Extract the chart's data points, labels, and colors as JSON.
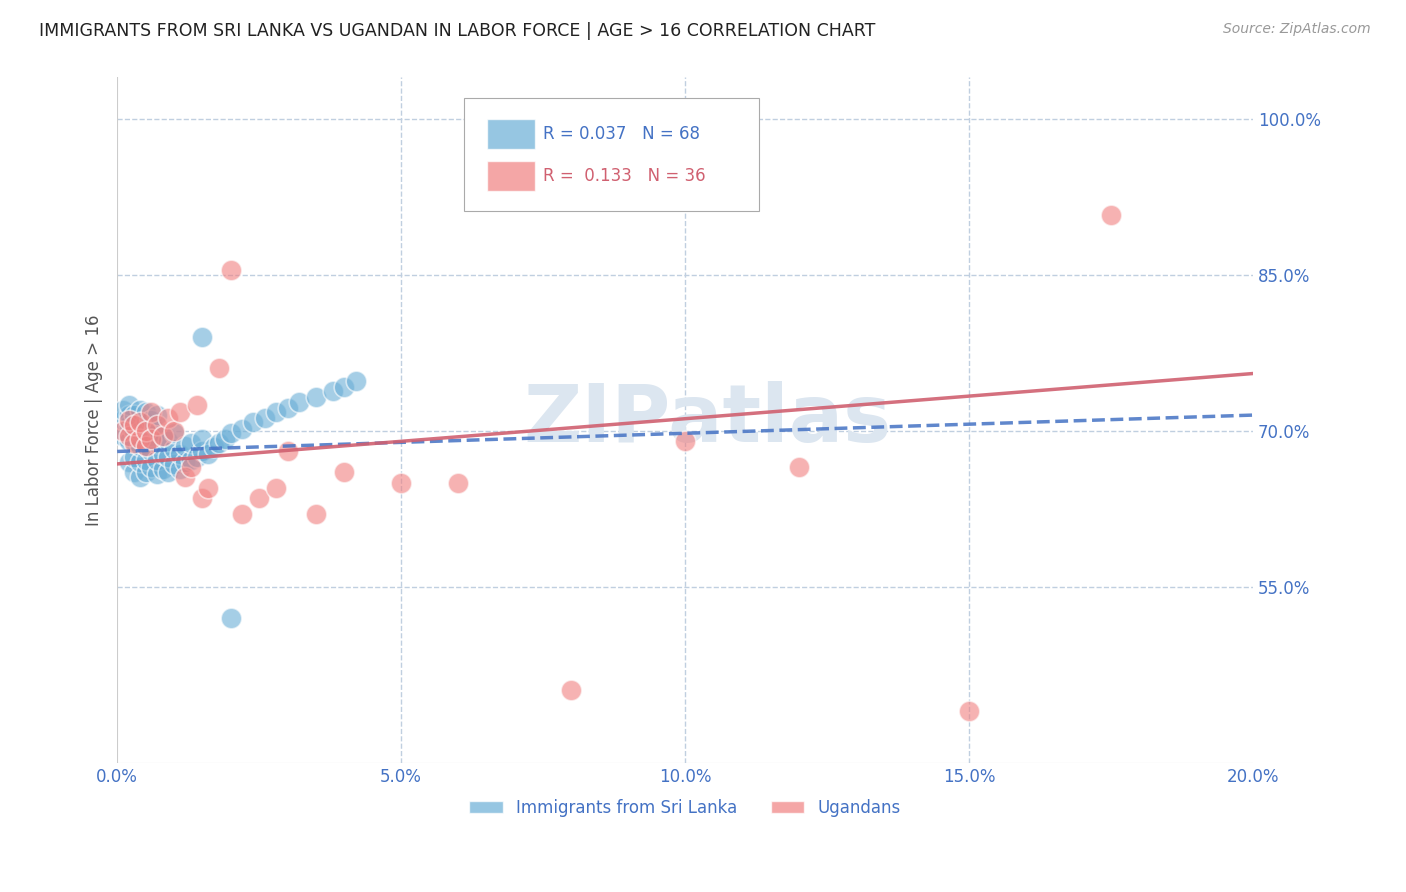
{
  "title": "IMMIGRANTS FROM SRI LANKA VS UGANDAN IN LABOR FORCE | AGE > 16 CORRELATION CHART",
  "source": "Source: ZipAtlas.com",
  "ylabel": "In Labor Force | Age > 16",
  "xlim": [
    0.0,
    0.2
  ],
  "ylim": [
    0.38,
    1.04
  ],
  "yticks": [
    0.55,
    0.7,
    0.85,
    1.0
  ],
  "ytick_labels": [
    "55.0%",
    "70.0%",
    "85.0%",
    "100.0%"
  ],
  "xticks": [
    0.0,
    0.05,
    0.1,
    0.15,
    0.2
  ],
  "xtick_labels": [
    "0.0%",
    "5.0%",
    "10.0%",
    "15.0%",
    "20.0%"
  ],
  "blue_color": "#6aaed6",
  "pink_color": "#f08080",
  "blue_R": 0.037,
  "blue_N": 68,
  "pink_R": 0.133,
  "pink_N": 36,
  "title_color": "#222222",
  "axis_color": "#4472c4",
  "grid_color": "#c0cfe0",
  "watermark": "ZIPatlas",
  "watermark_color": "#dce6f0",
  "legend_label_blue": "Immigrants from Sri Lanka",
  "legend_label_pink": "Ugandans",
  "blue_scatter_x": [
    0.001,
    0.001,
    0.001,
    0.002,
    0.002,
    0.002,
    0.002,
    0.002,
    0.003,
    0.003,
    0.003,
    0.003,
    0.003,
    0.004,
    0.004,
    0.004,
    0.004,
    0.004,
    0.005,
    0.005,
    0.005,
    0.005,
    0.005,
    0.005,
    0.006,
    0.006,
    0.006,
    0.006,
    0.007,
    0.007,
    0.007,
    0.007,
    0.007,
    0.008,
    0.008,
    0.008,
    0.009,
    0.009,
    0.009,
    0.01,
    0.01,
    0.01,
    0.011,
    0.011,
    0.012,
    0.012,
    0.013,
    0.013,
    0.014,
    0.015,
    0.015,
    0.016,
    0.017,
    0.018,
    0.019,
    0.02,
    0.022,
    0.024,
    0.026,
    0.028,
    0.03,
    0.032,
    0.035,
    0.038,
    0.04,
    0.042,
    0.015,
    0.02
  ],
  "blue_scatter_y": [
    0.695,
    0.71,
    0.72,
    0.67,
    0.69,
    0.705,
    0.715,
    0.725,
    0.66,
    0.675,
    0.69,
    0.7,
    0.715,
    0.655,
    0.67,
    0.685,
    0.7,
    0.72,
    0.66,
    0.672,
    0.685,
    0.695,
    0.708,
    0.718,
    0.665,
    0.68,
    0.695,
    0.71,
    0.658,
    0.672,
    0.688,
    0.7,
    0.715,
    0.663,
    0.678,
    0.695,
    0.66,
    0.675,
    0.69,
    0.668,
    0.682,
    0.698,
    0.663,
    0.678,
    0.67,
    0.685,
    0.672,
    0.688,
    0.675,
    0.68,
    0.692,
    0.678,
    0.684,
    0.688,
    0.692,
    0.698,
    0.702,
    0.708,
    0.712,
    0.718,
    0.722,
    0.728,
    0.732,
    0.738,
    0.742,
    0.748,
    0.79,
    0.52
  ],
  "pink_scatter_x": [
    0.001,
    0.002,
    0.002,
    0.003,
    0.003,
    0.004,
    0.004,
    0.005,
    0.005,
    0.006,
    0.006,
    0.007,
    0.008,
    0.009,
    0.01,
    0.011,
    0.012,
    0.013,
    0.014,
    0.015,
    0.016,
    0.018,
    0.02,
    0.022,
    0.025,
    0.028,
    0.03,
    0.035,
    0.04,
    0.05,
    0.06,
    0.08,
    0.1,
    0.12,
    0.15,
    0.175
  ],
  "pink_scatter_y": [
    0.7,
    0.695,
    0.71,
    0.688,
    0.705,
    0.692,
    0.708,
    0.685,
    0.7,
    0.692,
    0.718,
    0.705,
    0.695,
    0.712,
    0.7,
    0.718,
    0.655,
    0.665,
    0.725,
    0.635,
    0.645,
    0.76,
    0.855,
    0.62,
    0.635,
    0.645,
    0.68,
    0.62,
    0.66,
    0.65,
    0.65,
    0.45,
    0.69,
    0.665,
    0.43,
    0.908
  ],
  "blue_trend_x": [
    0.0,
    0.2
  ],
  "blue_trend_y": [
    0.68,
    0.715
  ],
  "pink_trend_x": [
    0.0,
    0.2
  ],
  "pink_trend_y": [
    0.668,
    0.755
  ]
}
